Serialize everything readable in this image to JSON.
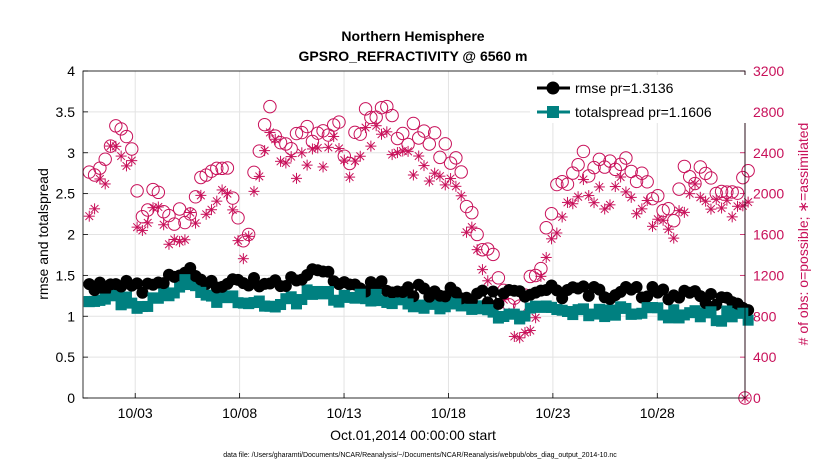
{
  "chart_data": {
    "type": "line",
    "title": [
      "Northern Hemisphere",
      "GPSRO_REFRACTIVITY @ 6560 m"
    ],
    "xlabel": "Oct.01,2014 00:00:00 start",
    "ylabel": "rmse and totalspread",
    "ylabel_right": "# of obs: o=possible; ∗=assimilated",
    "x_range_days": [
      0.5,
      32.2
    ],
    "x_ticks": [
      {
        "day": 3,
        "label": "10/03"
      },
      {
        "day": 8,
        "label": "10/08"
      },
      {
        "day": 13,
        "label": "10/13"
      },
      {
        "day": 18,
        "label": "10/18"
      },
      {
        "day": 23,
        "label": "10/23"
      },
      {
        "day": 28,
        "label": "10/28"
      }
    ],
    "ylim": [
      0,
      4
    ],
    "y_ticks": [
      "0",
      "0.5",
      "1",
      "1.5",
      "2",
      "2.5",
      "3",
      "3.5",
      "4"
    ],
    "ylim_right": [
      0,
      3200
    ],
    "y_ticks_right": [
      "0",
      "400",
      "800",
      "1200",
      "1600",
      "2000",
      "2400",
      "2800",
      "3200"
    ],
    "grid": true,
    "legend_position": "top-right",
    "series": [
      {
        "name": "rmse pr=1.3136",
        "axis": "left",
        "color": "#000000",
        "marker": "circle"
      },
      {
        "name": "totalspread pr=1.1606",
        "axis": "left",
        "color": "#008080",
        "marker": "square"
      },
      {
        "name": "possible",
        "axis": "right",
        "color": "#c8115a",
        "marker": "open-circle",
        "legend": false
      },
      {
        "name": "assimilated",
        "axis": "right",
        "color": "#c8115a",
        "marker": "asterisk",
        "legend": false
      }
    ],
    "envelope_possible": [
      [
        0.5,
        2020
      ],
      [
        1.3,
        2200
      ],
      [
        2.0,
        2600
      ],
      [
        2.8,
        2450
      ],
      [
        3.2,
        1700
      ],
      [
        3.7,
        1980
      ],
      [
        4.3,
        1950
      ],
      [
        4.8,
        1700
      ],
      [
        5.3,
        1750
      ],
      [
        6.0,
        2100
      ],
      [
        6.8,
        2280
      ],
      [
        7.5,
        2200
      ],
      [
        7.9,
        1700
      ],
      [
        8.3,
        1500
      ],
      [
        8.9,
        2500
      ],
      [
        9.4,
        2750
      ],
      [
        10.4,
        2500
      ],
      [
        11.4,
        2600
      ],
      [
        12.4,
        2700
      ],
      [
        13.3,
        2400
      ],
      [
        14.0,
        2800
      ],
      [
        14.8,
        2780
      ],
      [
        15.6,
        2650
      ],
      [
        16.6,
        2550
      ],
      [
        17.6,
        2450
      ],
      [
        18.3,
        2350
      ],
      [
        18.8,
        2000
      ],
      [
        19.6,
        1550
      ],
      [
        20.4,
        1150
      ],
      [
        21.2,
        950
      ],
      [
        22.2,
        1200
      ],
      [
        22.7,
        1600
      ],
      [
        23.3,
        2100
      ],
      [
        24.3,
        2300
      ],
      [
        25.3,
        2200
      ],
      [
        26.3,
        2350
      ],
      [
        27.3,
        2150
      ],
      [
        28.0,
        2000
      ],
      [
        28.8,
        1850
      ],
      [
        29.4,
        2250
      ],
      [
        30.4,
        2180
      ],
      [
        31.2,
        2050
      ],
      [
        32.1,
        2150
      ]
    ],
    "envelope_assim": [
      [
        0.5,
        1820
      ],
      [
        1.3,
        2050
      ],
      [
        2.0,
        2450
      ],
      [
        2.8,
        2300
      ],
      [
        3.2,
        1550
      ],
      [
        3.7,
        1800
      ],
      [
        4.3,
        1700
      ],
      [
        4.8,
        1450
      ],
      [
        5.3,
        1550
      ],
      [
        6.0,
        1850
      ],
      [
        6.8,
        2000
      ],
      [
        7.5,
        1950
      ],
      [
        7.9,
        1450
      ],
      [
        8.3,
        1350
      ],
      [
        8.9,
        2250
      ],
      [
        9.4,
        2500
      ],
      [
        10.4,
        2250
      ],
      [
        11.4,
        2300
      ],
      [
        12.4,
        2450
      ],
      [
        13.3,
        2200
      ],
      [
        14.0,
        2600
      ],
      [
        14.8,
        2550
      ],
      [
        15.6,
        2400
      ],
      [
        16.6,
        2250
      ],
      [
        17.6,
        2200
      ],
      [
        18.3,
        2100
      ],
      [
        18.8,
        1750
      ],
      [
        19.6,
        1250
      ],
      [
        20.4,
        900
      ],
      [
        21.2,
        650
      ],
      [
        22.2,
        850
      ],
      [
        22.7,
        1300
      ],
      [
        23.3,
        1800
      ],
      [
        24.3,
        2050
      ],
      [
        25.3,
        1950
      ],
      [
        26.3,
        2050
      ],
      [
        27.3,
        1850
      ],
      [
        28.0,
        1700
      ],
      [
        28.8,
        1550
      ],
      [
        29.4,
        2000
      ],
      [
        30.4,
        1950
      ],
      [
        31.2,
        1800
      ],
      [
        32.1,
        1900
      ]
    ],
    "envelope_rmse": [
      [
        0.5,
        1.32
      ],
      [
        2.0,
        1.42
      ],
      [
        3.5,
        1.35
      ],
      [
        5.0,
        1.55
      ],
      [
        5.5,
        1.6
      ],
      [
        6.5,
        1.4
      ],
      [
        8.0,
        1.42
      ],
      [
        10.0,
        1.35
      ],
      [
        11.8,
        1.62
      ],
      [
        12.5,
        1.4
      ],
      [
        15.0,
        1.35
      ],
      [
        17.0,
        1.3
      ],
      [
        19.0,
        1.25
      ],
      [
        20.5,
        1.22
      ],
      [
        22.0,
        1.3
      ],
      [
        24.0,
        1.3
      ],
      [
        26.0,
        1.28
      ],
      [
        28.0,
        1.3
      ],
      [
        30.0,
        1.22
      ],
      [
        32.1,
        1.15
      ]
    ],
    "envelope_spread": [
      [
        0.5,
        1.12
      ],
      [
        2.0,
        1.2
      ],
      [
        3.5,
        1.15
      ],
      [
        5.0,
        1.35
      ],
      [
        5.5,
        1.5
      ],
      [
        6.5,
        1.18
      ],
      [
        8.0,
        1.2
      ],
      [
        10.0,
        1.15
      ],
      [
        11.8,
        1.32
      ],
      [
        12.5,
        1.2
      ],
      [
        15.0,
        1.22
      ],
      [
        17.0,
        1.15
      ],
      [
        19.0,
        1.1
      ],
      [
        20.5,
        1.02
      ],
      [
        22.0,
        1.05
      ],
      [
        24.0,
        1.08
      ],
      [
        26.0,
        1.05
      ],
      [
        28.0,
        1.05
      ],
      [
        30.0,
        1.02
      ],
      [
        32.1,
        0.98
      ]
    ],
    "point_count": 125
  },
  "footer_note": "data file: /Users/gharamti/Documents/NCAR/Reanalysis/~/Documents/NCAR/Reanalysis/webpub/obs_diag_output_2014-10.nc"
}
